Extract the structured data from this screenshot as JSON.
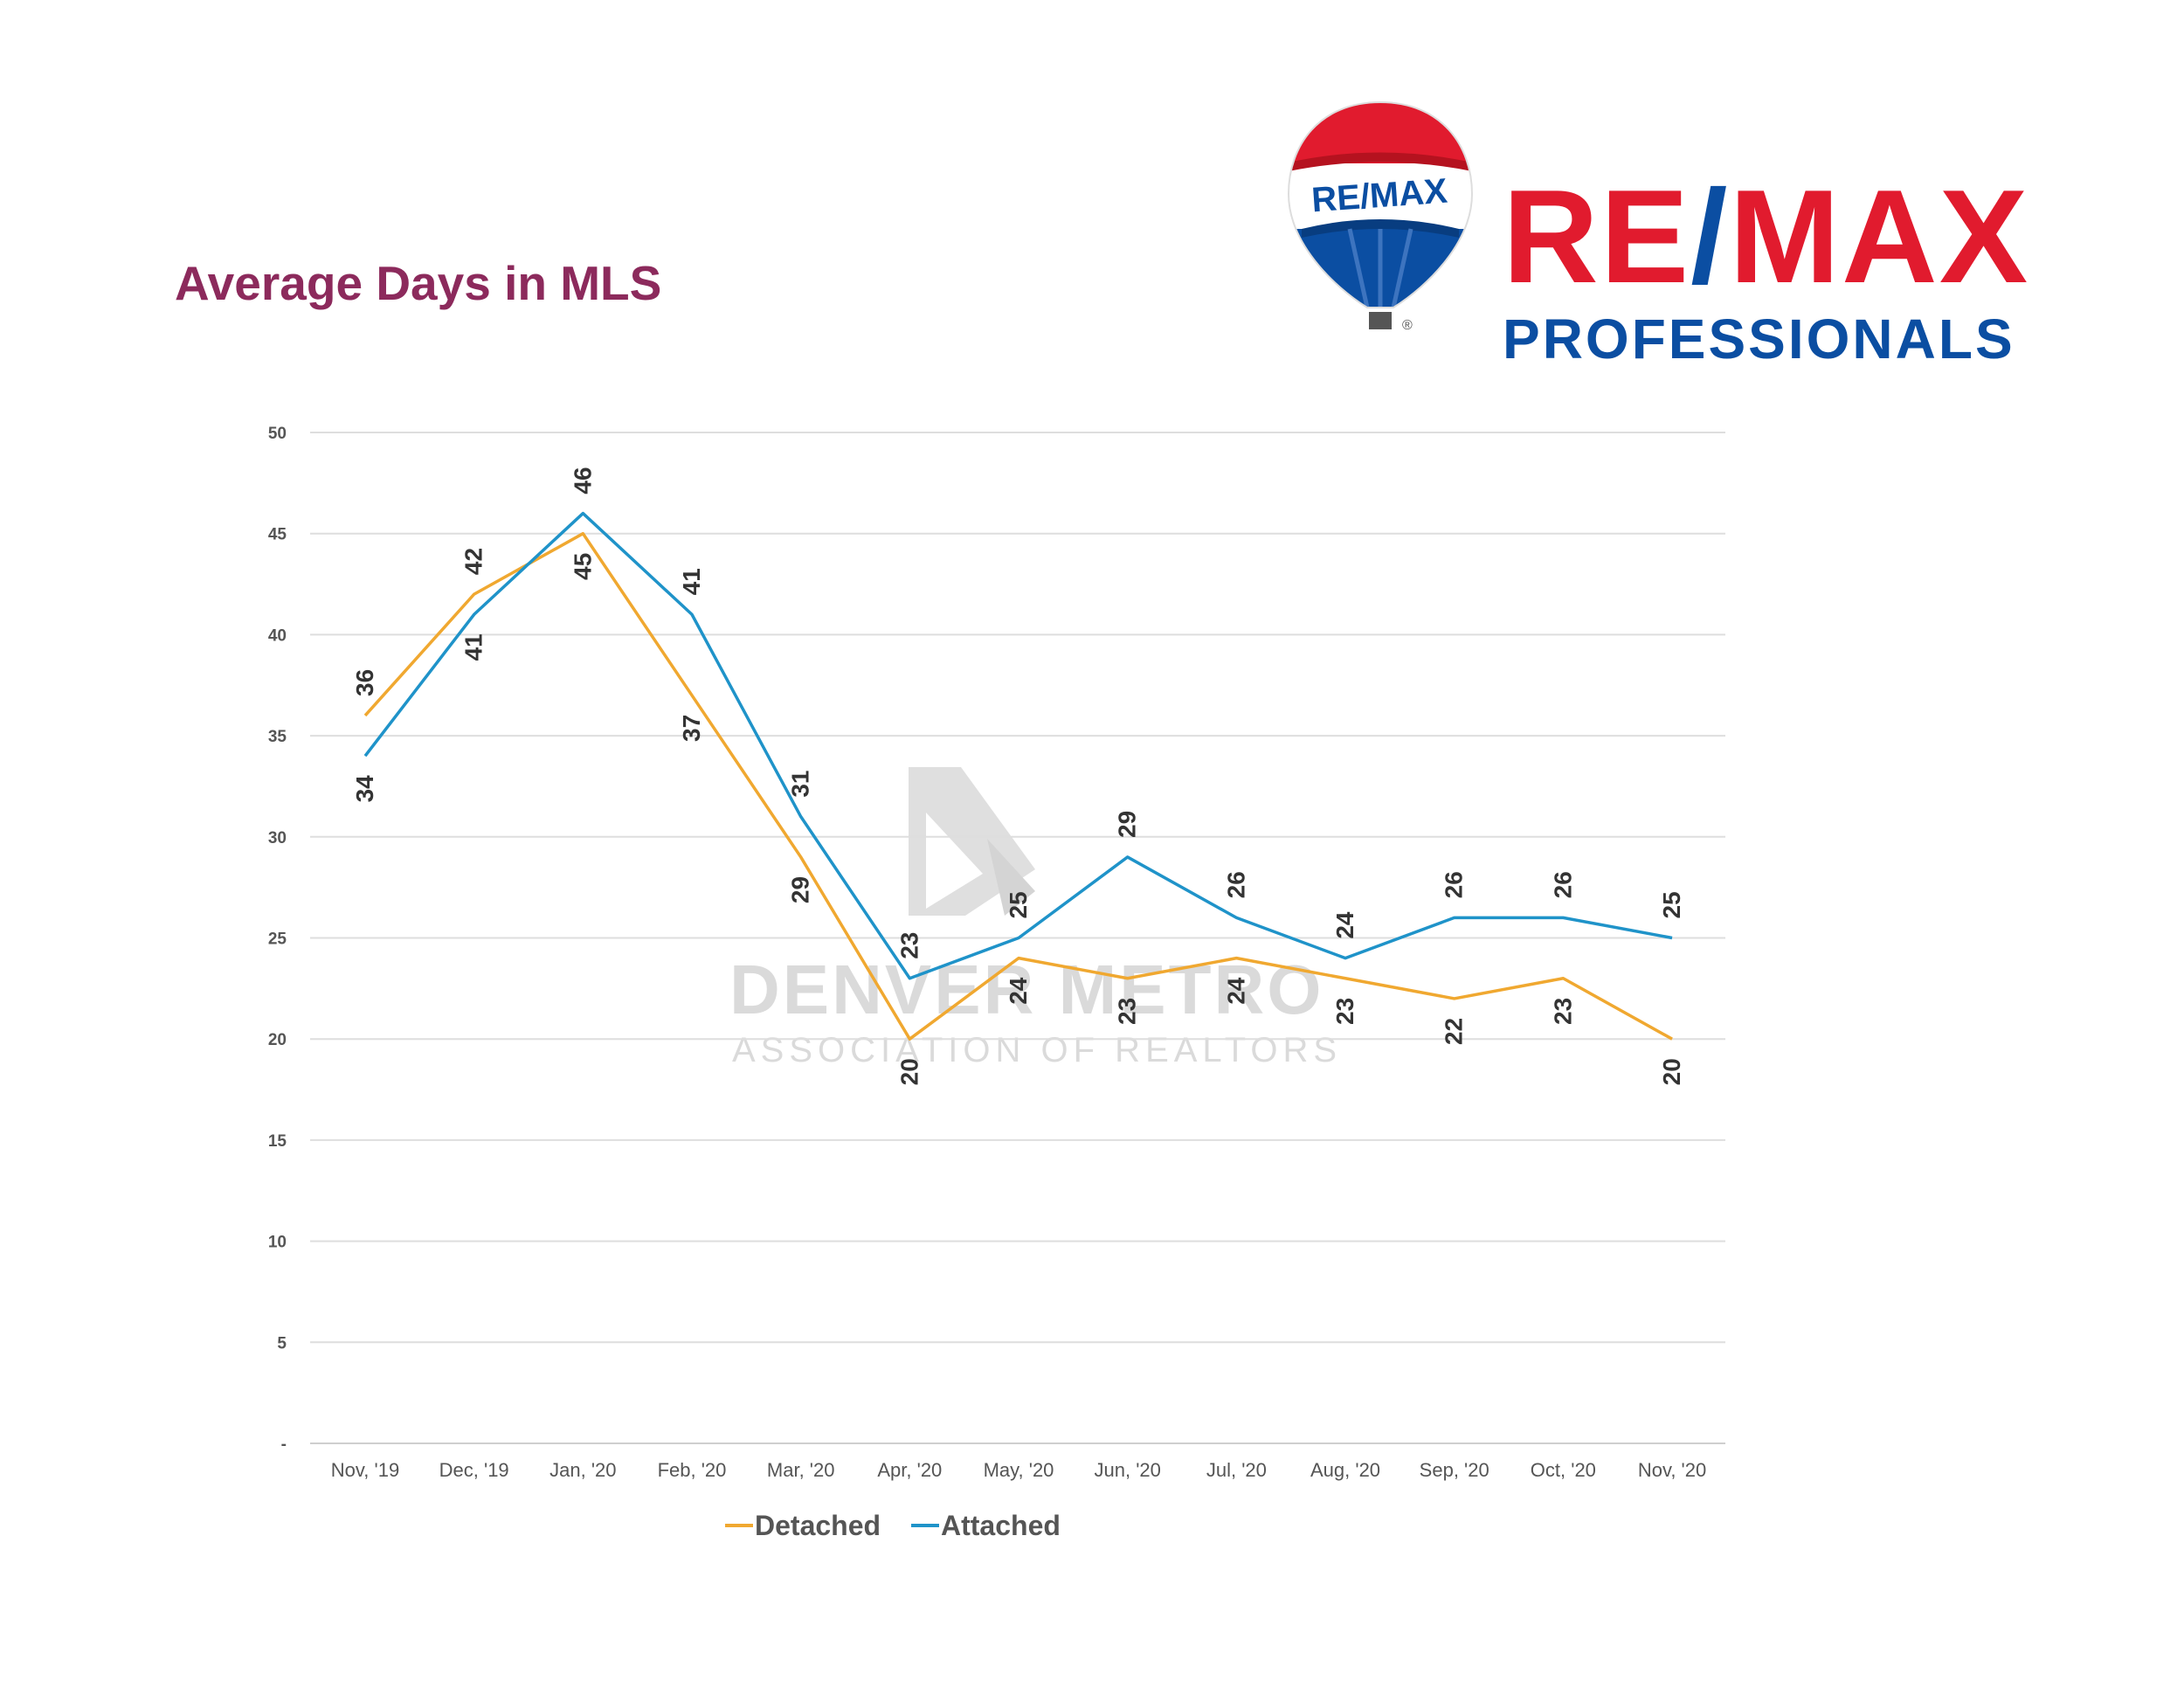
{
  "page": {
    "title": "Average Days in MLS"
  },
  "brand": {
    "balloon_text": "RE/MAX",
    "name_left": "RE",
    "name_slash": "/",
    "name_right": "MAX",
    "subtitle": "PROFESSIONALS",
    "colors": {
      "red": "#e11b2e",
      "blue": "#0b4ea2"
    }
  },
  "watermark": {
    "line1": "DENVER METRO",
    "line2": "ASSOCIATION OF REALTORS"
  },
  "chart_data": {
    "type": "line",
    "categories": [
      "Nov, '19",
      "Dec, '19",
      "Jan, '20",
      "Feb, '20",
      "Mar, '20",
      "Apr, '20",
      "May, '20",
      "Jun, '20",
      "Jul, '20",
      "Aug, '20",
      "Sep, '20",
      "Oct, '20",
      "Nov, '20"
    ],
    "series": [
      {
        "name": "Detached",
        "color": "#f0a830",
        "values": [
          36,
          42,
          45,
          37,
          29,
          20,
          24,
          23,
          24,
          23,
          22,
          23,
          20
        ]
      },
      {
        "name": "Attached",
        "color": "#1f93c9",
        "values": [
          34,
          41,
          46,
          41,
          31,
          23,
          25,
          29,
          26,
          24,
          26,
          26,
          25
        ]
      }
    ],
    "ylim": [
      0,
      50
    ],
    "yticks": [
      0,
      5,
      10,
      15,
      20,
      25,
      30,
      35,
      40,
      45,
      50
    ],
    "ytick_labels": [
      "-",
      "5",
      "10",
      "15",
      "20",
      "25",
      "30",
      "35",
      "40",
      "45",
      "50"
    ],
    "grid": true,
    "legend_position": "bottom",
    "xlabel": "",
    "ylabel": ""
  }
}
